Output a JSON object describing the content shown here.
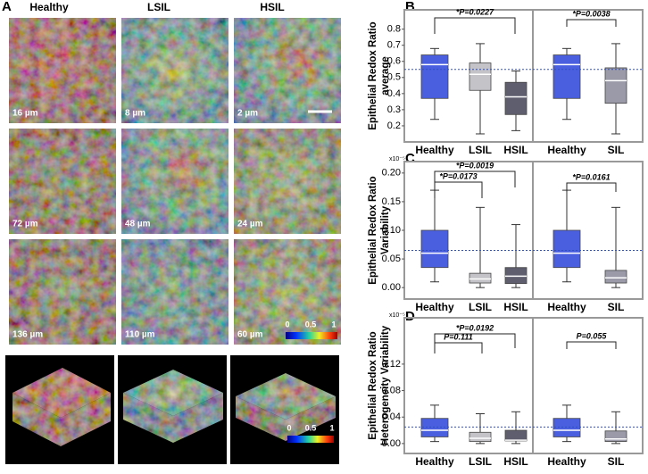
{
  "panel_a": {
    "panel_label": "A",
    "column_titles": [
      "Healthy",
      "LSIL",
      "HSIL"
    ],
    "depth_labels": [
      "16 µm",
      "8 µm",
      "2 µm",
      "72 µm",
      "48 µm",
      "24 µm",
      "136 µm",
      "110 µm",
      "60 µm"
    ],
    "colorbar_ticks": [
      "0",
      "0.5",
      "1"
    ],
    "colorbar_3d_ticks": [
      "0",
      "0.5",
      "1"
    ]
  },
  "chart_data": [
    {
      "type": "box",
      "panel_label": "B",
      "y_label": [
        "Epithelial Redox Ratio",
        "average"
      ],
      "ylim": [
        0.1,
        0.92
      ],
      "yticks": [
        0.2,
        0.3,
        0.4,
        0.5,
        0.6,
        0.7,
        0.8
      ],
      "ref_line": 0.55,
      "groups": [
        {
          "categories": [
            "Healthy",
            "LSIL",
            "HSIL"
          ],
          "colors": [
            "#4a5fe0",
            "#c4c4c8",
            "#5e5e6e"
          ],
          "whisker_low": [
            0.24,
            0.15,
            0.17
          ],
          "q1": [
            0.37,
            0.42,
            0.27
          ],
          "median": [
            0.58,
            0.52,
            0.38
          ],
          "q3": [
            0.64,
            0.59,
            0.47
          ],
          "whisker_high": [
            0.68,
            0.71,
            0.54
          ]
        },
        {
          "categories": [
            "Healthy",
            "SIL"
          ],
          "colors": [
            "#4a5fe0",
            "#9a9aa8"
          ],
          "whisker_low": [
            0.24,
            0.15
          ],
          "q1": [
            0.37,
            0.34
          ],
          "median": [
            0.58,
            0.48
          ],
          "q3": [
            0.64,
            0.56
          ],
          "whisker_high": [
            0.68,
            0.71
          ]
        }
      ],
      "annotations": [
        "*P=0.0227",
        "*P=0.0038"
      ]
    },
    {
      "type": "box",
      "panel_label": "C",
      "y_label": [
        "Epithelial Redox Ratio",
        "Variability"
      ],
      "scale_note": "x10⁻⁵",
      "ylim": [
        -0.02,
        0.22
      ],
      "yticks": [
        {
          "value": 0,
          "label": "0.00"
        },
        0.05,
        {
          "value": 0.1,
          "label": "0.10"
        },
        0.15,
        {
          "value": 0.2,
          "label": "0.20"
        }
      ],
      "ref_line": 0.065,
      "groups": [
        {
          "categories": [
            "Healthy",
            "LSIL",
            "HSIL"
          ],
          "colors": [
            "#4a5fe0",
            "#c4c4c8",
            "#5e5e6e"
          ],
          "whisker_low": [
            0.01,
            0,
            0
          ],
          "q1": [
            0.035,
            0.008,
            0.007
          ],
          "median": [
            0.06,
            0.015,
            0.02
          ],
          "q3": [
            0.1,
            0.025,
            0.035
          ],
          "whisker_high": [
            0.17,
            0.14,
            0.11
          ]
        },
        {
          "categories": [
            "Healthy",
            "SIL"
          ],
          "colors": [
            "#4a5fe0",
            "#9a9aa8"
          ],
          "whisker_low": [
            0.01,
            0
          ],
          "q1": [
            0.035,
            0.008
          ],
          "median": [
            0.06,
            0.017
          ],
          "q3": [
            0.1,
            0.03
          ],
          "whisker_high": [
            0.17,
            0.14
          ]
        }
      ],
      "annotations": [
        "*P=0.0173",
        "*P=0.0019",
        "*P=0.0161"
      ]
    },
    {
      "type": "box",
      "panel_label": "D",
      "y_label": [
        "Epithelial Redox Ratio",
        "Heterogeneity Variability"
      ],
      "scale_note": "x10⁻⁵",
      "ylim": [
        -0.015,
        0.19
      ],
      "yticks": [
        {
          "value": 0,
          "label": "0.00"
        },
        0.04,
        0.08,
        0.12
      ],
      "ref_line": 0.025,
      "groups": [
        {
          "categories": [
            "Healthy",
            "LSIL",
            "HSIL"
          ],
          "colors": [
            "#4a5fe0",
            "#c4c4c8",
            "#5e5e6e"
          ],
          "whisker_low": [
            0.003,
            0,
            0
          ],
          "q1": [
            0.01,
            0.003,
            0.004
          ],
          "median": [
            0.02,
            0.008,
            0.005
          ],
          "q3": [
            0.038,
            0.017,
            0.02
          ],
          "whisker_high": [
            0.058,
            0.045,
            0.048
          ]
        },
        {
          "categories": [
            "Healthy",
            "SIL"
          ],
          "colors": [
            "#4a5fe0",
            "#9a9aa8"
          ],
          "whisker_low": [
            0.003,
            0
          ],
          "q1": [
            0.01,
            0.003
          ],
          "median": [
            0.02,
            0.007
          ],
          "q3": [
            0.038,
            0.019
          ],
          "whisker_high": [
            0.058,
            0.048
          ]
        }
      ],
      "annotations": [
        "P=0.111",
        "*P=0.0192",
        "P=0.055"
      ]
    }
  ]
}
